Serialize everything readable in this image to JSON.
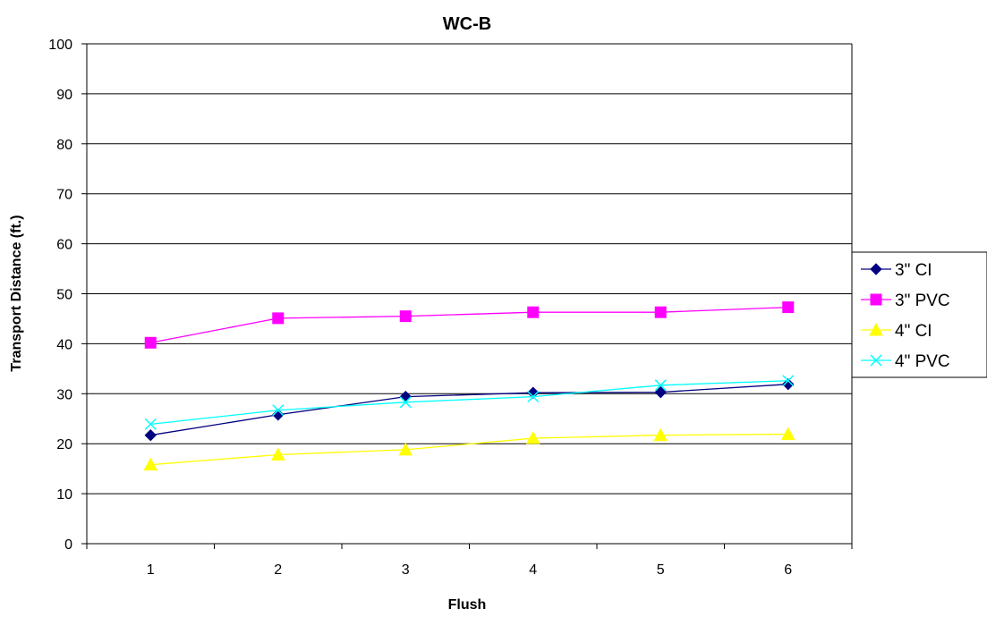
{
  "chart_data": {
    "type": "line",
    "title": "WC-B",
    "xlabel": "Flush",
    "ylabel": "Transport Distance (ft.)",
    "categories": [
      "1",
      "2",
      "3",
      "4",
      "5",
      "6"
    ],
    "ylim": [
      0,
      100
    ],
    "yticks": [
      "0",
      "10",
      "20",
      "30",
      "40",
      "50",
      "60",
      "70",
      "80",
      "90",
      "100"
    ],
    "grid": true,
    "legend_position": "right",
    "series": [
      {
        "name": "3\" CI",
        "color": "#000080",
        "marker": "diamond",
        "values": [
          21.7,
          25.8,
          29.4,
          30.2,
          30.3,
          31.9
        ]
      },
      {
        "name": "3\" PVC",
        "color": "#FF00FF",
        "marker": "square",
        "values": [
          40.2,
          45.1,
          45.5,
          46.3,
          46.3,
          47.3
        ]
      },
      {
        "name": "4\" CI",
        "color": "#FFFF00",
        "marker": "triangle",
        "values": [
          15.8,
          17.8,
          18.8,
          21.1,
          21.7,
          21.9
        ]
      },
      {
        "name": "4\" PVC",
        "color": "#00FFFF",
        "marker": "x",
        "values": [
          23.9,
          26.7,
          28.3,
          29.4,
          31.7,
          32.6
        ]
      }
    ]
  }
}
